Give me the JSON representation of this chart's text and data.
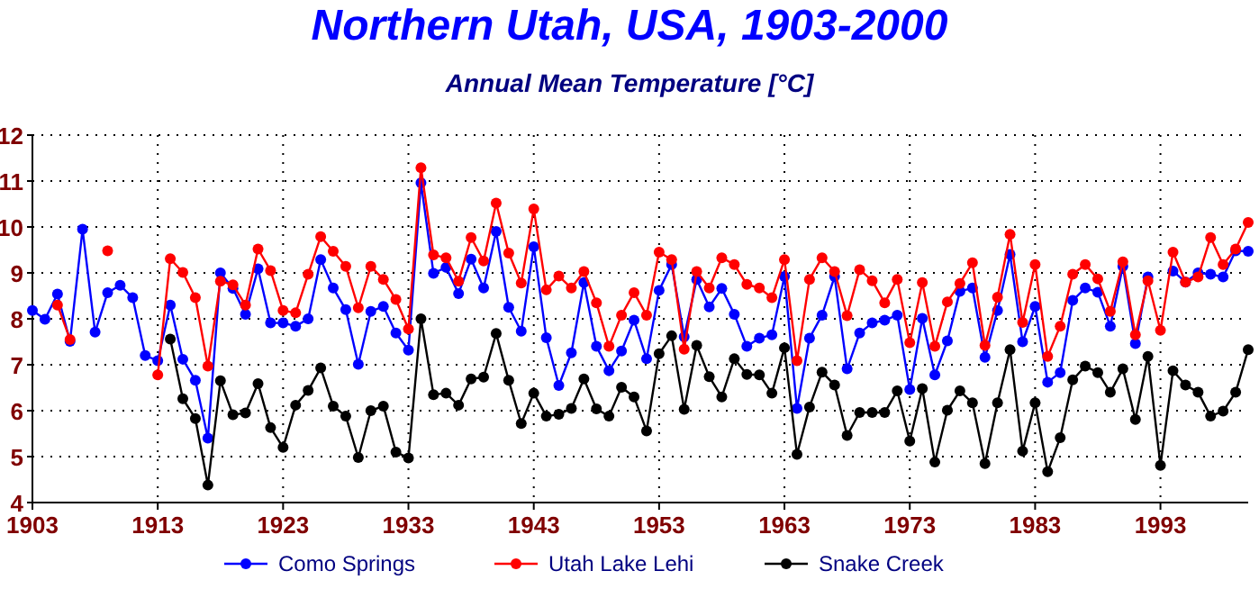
{
  "chart_data": {
    "type": "line",
    "title": "Northern Utah, USA, 1903-2000",
    "subtitle": "Annual Mean Temperature [°C]",
    "x": [
      1903,
      1904,
      1905,
      1906,
      1907,
      1908,
      1909,
      1910,
      1911,
      1912,
      1913,
      1914,
      1915,
      1916,
      1917,
      1918,
      1919,
      1920,
      1921,
      1922,
      1923,
      1924,
      1925,
      1926,
      1927,
      1928,
      1929,
      1930,
      1931,
      1932,
      1933,
      1934,
      1935,
      1936,
      1937,
      1938,
      1939,
      1940,
      1941,
      1942,
      1943,
      1944,
      1945,
      1946,
      1947,
      1948,
      1949,
      1950,
      1951,
      1952,
      1953,
      1954,
      1955,
      1956,
      1957,
      1958,
      1959,
      1960,
      1961,
      1962,
      1963,
      1964,
      1965,
      1966,
      1967,
      1968,
      1969,
      1970,
      1971,
      1972,
      1973,
      1974,
      1975,
      1976,
      1977,
      1978,
      1979,
      1980,
      1981,
      1982,
      1983,
      1984,
      1985,
      1986,
      1987,
      1988,
      1989,
      1990,
      1991,
      1992,
      1993,
      1994,
      1995,
      1996,
      1997,
      1998,
      1999,
      2000
    ],
    "series": [
      {
        "name": "Como Springs",
        "color": "#0000ff",
        "values": [
          8.18,
          7.99,
          8.54,
          7.51,
          9.95,
          7.71,
          8.57,
          8.73,
          8.46,
          7.2,
          7.09,
          8.3,
          7.12,
          6.66,
          5.4,
          9.0,
          8.66,
          8.1,
          9.09,
          7.91,
          7.91,
          7.84,
          8.0,
          9.29,
          8.67,
          8.2,
          7.01,
          8.16,
          8.27,
          7.69,
          7.32,
          10.96,
          8.99,
          9.12,
          8.55,
          9.3,
          8.67,
          9.9,
          8.25,
          7.73,
          9.57,
          7.59,
          6.55,
          7.26,
          8.79,
          7.4,
          6.87,
          7.3,
          7.97,
          7.13,
          8.62,
          9.18,
          7.61,
          8.86,
          8.26,
          8.66,
          8.1,
          7.4,
          7.58,
          7.65,
          8.92,
          6.05,
          7.58,
          8.08,
          8.92,
          6.91,
          7.69,
          7.91,
          7.97,
          8.08,
          6.46,
          8.01,
          6.78,
          7.52,
          8.6,
          8.67,
          7.16,
          8.18,
          9.4,
          7.5,
          8.27,
          6.62,
          6.83,
          8.4,
          8.67,
          8.58,
          7.84,
          9.14,
          7.46,
          8.91,
          null,
          9.04,
          8.8,
          9.0,
          8.97,
          8.91,
          9.48,
          9.47
        ]
      },
      {
        "name": "Utah Lake Lehi",
        "color": "#ff0000",
        "values": [
          null,
          null,
          8.3,
          7.55,
          null,
          null,
          9.48,
          null,
          null,
          null,
          6.78,
          9.31,
          9.01,
          8.46,
          6.97,
          8.82,
          8.74,
          8.3,
          9.52,
          9.05,
          8.18,
          8.13,
          8.97,
          9.79,
          9.47,
          9.14,
          8.24,
          9.14,
          8.86,
          8.42,
          7.78,
          11.29,
          9.39,
          9.33,
          8.82,
          9.77,
          9.26,
          10.52,
          9.43,
          8.78,
          10.39,
          8.63,
          8.93,
          8.67,
          9.03,
          8.35,
          7.4,
          8.08,
          8.57,
          8.08,
          9.45,
          9.29,
          7.34,
          9.03,
          8.67,
          9.33,
          9.18,
          8.75,
          8.67,
          8.46,
          9.29,
          7.09,
          8.86,
          9.33,
          9.03,
          8.07,
          9.07,
          8.83,
          8.35,
          8.86,
          7.48,
          8.79,
          7.4,
          8.37,
          8.77,
          9.22,
          7.42,
          8.47,
          9.84,
          7.92,
          9.18,
          7.18,
          7.84,
          8.97,
          9.18,
          8.87,
          8.16,
          9.24,
          7.65,
          8.83,
          7.75,
          9.45,
          8.8,
          8.91,
          9.77,
          9.18,
          9.52,
          10.1
        ]
      },
      {
        "name": "Snake Creek",
        "color": "#000000",
        "values": [
          null,
          null,
          null,
          null,
          null,
          null,
          null,
          null,
          null,
          null,
          null,
          7.56,
          6.26,
          5.83,
          4.38,
          6.65,
          5.91,
          5.95,
          6.59,
          5.63,
          5.2,
          6.12,
          6.44,
          6.93,
          6.1,
          5.88,
          4.98,
          6.0,
          6.1,
          5.1,
          4.97,
          8.0,
          6.35,
          6.38,
          6.12,
          6.69,
          6.73,
          7.68,
          6.66,
          5.72,
          6.38,
          5.88,
          5.92,
          6.05,
          6.69,
          6.04,
          5.88,
          6.51,
          6.3,
          5.56,
          7.24,
          7.63,
          6.03,
          7.42,
          6.74,
          6.3,
          7.13,
          6.79,
          6.78,
          6.38,
          7.37,
          5.05,
          6.08,
          6.84,
          6.56,
          5.46,
          5.96,
          5.96,
          5.96,
          6.43,
          5.34,
          6.48,
          4.88,
          6.01,
          6.43,
          6.17,
          4.85,
          6.17,
          7.33,
          5.12,
          6.17,
          4.67,
          5.41,
          6.67,
          6.97,
          6.83,
          6.4,
          6.91,
          5.81,
          7.18,
          4.81,
          6.87,
          6.56,
          6.4,
          5.88,
          5.99,
          6.4,
          7.33
        ]
      }
    ],
    "xlim": [
      1903,
      2000
    ],
    "xticks": [
      1903,
      1913,
      1923,
      1933,
      1943,
      1953,
      1963,
      1973,
      1983,
      1993
    ],
    "ylim": [
      4,
      12
    ],
    "yticks": [
      4,
      5,
      6,
      7,
      8,
      9,
      10,
      11,
      12
    ],
    "grid": true,
    "legend": "bottom",
    "marker": "circle",
    "line_style": "solid"
  }
}
